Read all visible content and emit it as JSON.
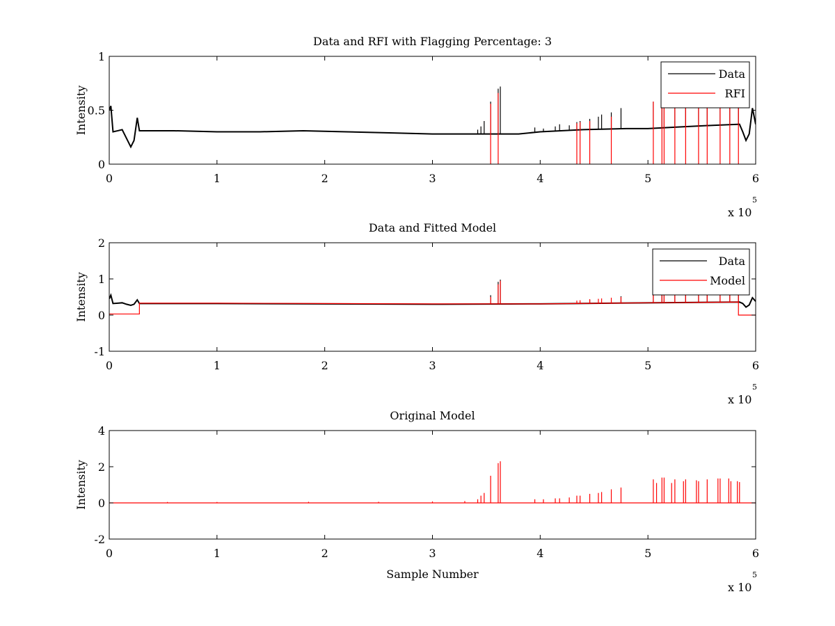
{
  "figure": {
    "background": "#ffffff"
  },
  "chart_data": [
    {
      "type": "line",
      "title": "Data and RFI with Flagging Percentage: 3",
      "xlabel": "",
      "ylabel": "Intensity",
      "xlim": [
        0,
        600000
      ],
      "ylim": [
        0,
        1
      ],
      "xticks": [
        0,
        100000,
        200000,
        300000,
        400000,
        500000,
        600000
      ],
      "xtick_labels": [
        "0",
        "1",
        "2",
        "3",
        "4",
        "5",
        "6"
      ],
      "yticks": [
        0,
        0.5,
        1
      ],
      "ytick_labels": [
        "0",
        "0.5",
        "1"
      ],
      "x_exponent": {
        "base": "x 10",
        "power": "5"
      },
      "grid": false,
      "legend": "top-right",
      "series": [
        {
          "name": "Data",
          "color": "#000000",
          "baseline": [
            [
              0,
              0.5
            ],
            [
              1500,
              0.54
            ],
            [
              3500,
              0.3
            ],
            [
              8000,
              0.31
            ],
            [
              12000,
              0.32
            ],
            [
              16000,
              0.24
            ],
            [
              20000,
              0.16
            ],
            [
              23000,
              0.22
            ],
            [
              26000,
              0.43
            ],
            [
              28000,
              0.31
            ],
            [
              60000,
              0.31
            ],
            [
              100000,
              0.3
            ],
            [
              140000,
              0.3
            ],
            [
              180000,
              0.31
            ],
            [
              220000,
              0.3
            ],
            [
              260000,
              0.29
            ],
            [
              300000,
              0.28
            ],
            [
              340000,
              0.28
            ],
            [
              380000,
              0.28
            ],
            [
              400000,
              0.3
            ],
            [
              440000,
              0.32
            ],
            [
              480000,
              0.33
            ],
            [
              500000,
              0.33
            ],
            [
              520000,
              0.34
            ],
            [
              560000,
              0.36
            ],
            [
              585000,
              0.37
            ],
            [
              588000,
              0.3
            ],
            [
              591000,
              0.22
            ],
            [
              594000,
              0.28
            ],
            [
              597000,
              0.52
            ],
            [
              600000,
              0.37
            ]
          ],
          "spikes": [
            [
              342000,
              0.32
            ],
            [
              345000,
              0.35
            ],
            [
              348000,
              0.4
            ],
            [
              354000,
              0.58
            ],
            [
              361000,
              0.7
            ],
            [
              363000,
              0.72
            ],
            [
              395000,
              0.34
            ],
            [
              403000,
              0.33
            ],
            [
              414000,
              0.35
            ],
            [
              418000,
              0.37
            ],
            [
              427000,
              0.36
            ],
            [
              434000,
              0.39
            ],
            [
              437000,
              0.4
            ],
            [
              446000,
              0.42
            ],
            [
              454000,
              0.44
            ],
            [
              457000,
              0.46
            ],
            [
              466000,
              0.48
            ],
            [
              475000,
              0.52
            ],
            [
              505000,
              0.58
            ],
            [
              513000,
              0.6
            ],
            [
              515000,
              0.6
            ],
            [
              525000,
              0.57
            ],
            [
              535000,
              0.56
            ],
            [
              547000,
              0.55
            ],
            [
              555000,
              0.56
            ],
            [
              567000,
              0.57
            ],
            [
              576000,
              0.57
            ],
            [
              584000,
              0.56
            ]
          ]
        },
        {
          "name": "RFI",
          "color": "#ff0000",
          "spikes": [
            [
              354000,
              0.56
            ],
            [
              361000,
              0.66
            ],
            [
              434000,
              0.38
            ],
            [
              437000,
              0.39
            ],
            [
              446000,
              0.4
            ],
            [
              466000,
              0.44
            ],
            [
              505000,
              0.58
            ],
            [
              513000,
              0.58
            ],
            [
              515000,
              0.57
            ],
            [
              525000,
              0.55
            ],
            [
              535000,
              0.54
            ],
            [
              547000,
              0.53
            ],
            [
              555000,
              0.54
            ],
            [
              567000,
              0.55
            ],
            [
              576000,
              0.55
            ],
            [
              584000,
              0.54
            ]
          ]
        }
      ]
    },
    {
      "type": "line",
      "title": "Data and Fitted Model",
      "xlabel": "",
      "ylabel": "Intensity",
      "xlim": [
        0,
        600000
      ],
      "ylim": [
        -1,
        2
      ],
      "xticks": [
        0,
        100000,
        200000,
        300000,
        400000,
        500000,
        600000
      ],
      "xtick_labels": [
        "0",
        "1",
        "2",
        "3",
        "4",
        "5",
        "6"
      ],
      "yticks": [
        -1,
        0,
        1,
        2
      ],
      "ytick_labels": [
        "-1",
        "0",
        "1",
        "2"
      ],
      "x_exponent": {
        "base": "x 10",
        "power": "5"
      },
      "grid": false,
      "legend": "top-right",
      "series": [
        {
          "name": "Data",
          "color": "#000000",
          "baseline": [
            [
              0,
              0.45
            ],
            [
              1500,
              0.55
            ],
            [
              3500,
              0.32
            ],
            [
              8000,
              0.33
            ],
            [
              12000,
              0.34
            ],
            [
              16000,
              0.3
            ],
            [
              20000,
              0.27
            ],
            [
              23000,
              0.3
            ],
            [
              26000,
              0.42
            ],
            [
              28000,
              0.32
            ],
            [
              100000,
              0.32
            ],
            [
              200000,
              0.31
            ],
            [
              300000,
              0.3
            ],
            [
              400000,
              0.31
            ],
            [
              500000,
              0.34
            ],
            [
              585000,
              0.36
            ],
            [
              588000,
              0.32
            ],
            [
              591000,
              0.22
            ],
            [
              594000,
              0.28
            ],
            [
              597000,
              0.48
            ],
            [
              600000,
              0.38
            ]
          ],
          "spikes": [
            [
              354000,
              0.55
            ],
            [
              361000,
              0.92
            ],
            [
              363000,
              0.98
            ],
            [
              446000,
              0.42
            ],
            [
              475000,
              0.52
            ],
            [
              505000,
              0.6
            ],
            [
              513000,
              0.6
            ],
            [
              515000,
              0.62
            ],
            [
              525000,
              0.58
            ],
            [
              535000,
              0.56
            ],
            [
              547000,
              0.55
            ],
            [
              555000,
              0.58
            ],
            [
              567000,
              0.6
            ],
            [
              576000,
              0.62
            ],
            [
              584000,
              0.6
            ]
          ]
        },
        {
          "name": "Model",
          "color": "#ff0000",
          "baseline": [
            [
              0,
              0.03
            ],
            [
              28000,
              0.03
            ],
            [
              28000,
              0.33
            ],
            [
              100000,
              0.33
            ],
            [
              200000,
              0.32
            ],
            [
              300000,
              0.31
            ],
            [
              400000,
              0.31
            ],
            [
              500000,
              0.34
            ],
            [
              584000,
              0.36
            ],
            [
              584000,
              0.0
            ],
            [
              600000,
              0.0
            ]
          ],
          "spikes": [
            [
              354000,
              0.5
            ],
            [
              361000,
              0.85
            ],
            [
              363000,
              0.95
            ],
            [
              434000,
              0.4
            ],
            [
              437000,
              0.41
            ],
            [
              446000,
              0.44
            ],
            [
              454000,
              0.45
            ],
            [
              457000,
              0.46
            ],
            [
              466000,
              0.48
            ],
            [
              475000,
              0.5
            ],
            [
              505000,
              0.58
            ],
            [
              513000,
              0.6
            ],
            [
              515000,
              0.62
            ],
            [
              525000,
              0.58
            ],
            [
              535000,
              0.56
            ],
            [
              547000,
              0.55
            ],
            [
              555000,
              0.58
            ],
            [
              567000,
              0.6
            ],
            [
              576000,
              0.62
            ],
            [
              584000,
              0.6
            ]
          ]
        }
      ]
    },
    {
      "type": "line",
      "title": "Original Model",
      "xlabel": "Sample Number",
      "ylabel": "Intensity",
      "xlim": [
        0,
        600000
      ],
      "ylim": [
        -2,
        4
      ],
      "xticks": [
        0,
        100000,
        200000,
        300000,
        400000,
        500000,
        600000
      ],
      "xtick_labels": [
        "0",
        "1",
        "2",
        "3",
        "4",
        "5",
        "6"
      ],
      "yticks": [
        -2,
        0,
        2,
        4
      ],
      "ytick_labels": [
        "-2",
        "0",
        "2",
        "4"
      ],
      "x_exponent": {
        "base": "x 10",
        "power": "5"
      },
      "grid": false,
      "legend": "none",
      "series": [
        {
          "color": "#ff0000",
          "baseline": [
            [
              0,
              0
            ],
            [
              600000,
              0
            ]
          ],
          "spikes": [
            [
              54000,
              0.05
            ],
            [
              100000,
              0.05
            ],
            [
              185000,
              0.06
            ],
            [
              250000,
              0.06
            ],
            [
              300000,
              0.08
            ],
            [
              330000,
              0.1
            ],
            [
              342000,
              0.2
            ],
            [
              345000,
              0.4
            ],
            [
              348000,
              0.55
            ],
            [
              354000,
              1.5
            ],
            [
              361000,
              2.2
            ],
            [
              363000,
              2.3
            ],
            [
              395000,
              0.2
            ],
            [
              403000,
              0.2
            ],
            [
              414000,
              0.25
            ],
            [
              418000,
              0.25
            ],
            [
              427000,
              0.3
            ],
            [
              434000,
              0.4
            ],
            [
              437000,
              0.4
            ],
            [
              446000,
              0.5
            ],
            [
              454000,
              0.55
            ],
            [
              457000,
              0.6
            ],
            [
              466000,
              0.75
            ],
            [
              475000,
              0.85
            ],
            [
              505000,
              1.3
            ],
            [
              508000,
              1.1
            ],
            [
              513000,
              1.4
            ],
            [
              515000,
              1.4
            ],
            [
              522000,
              1.1
            ],
            [
              525000,
              1.3
            ],
            [
              533000,
              1.2
            ],
            [
              535000,
              1.3
            ],
            [
              545000,
              1.25
            ],
            [
              547000,
              1.2
            ],
            [
              555000,
              1.3
            ],
            [
              565000,
              1.35
            ],
            [
              567000,
              1.35
            ],
            [
              575000,
              1.35
            ],
            [
              577000,
              1.2
            ],
            [
              583000,
              1.2
            ],
            [
              585000,
              1.15
            ]
          ]
        }
      ]
    }
  ]
}
